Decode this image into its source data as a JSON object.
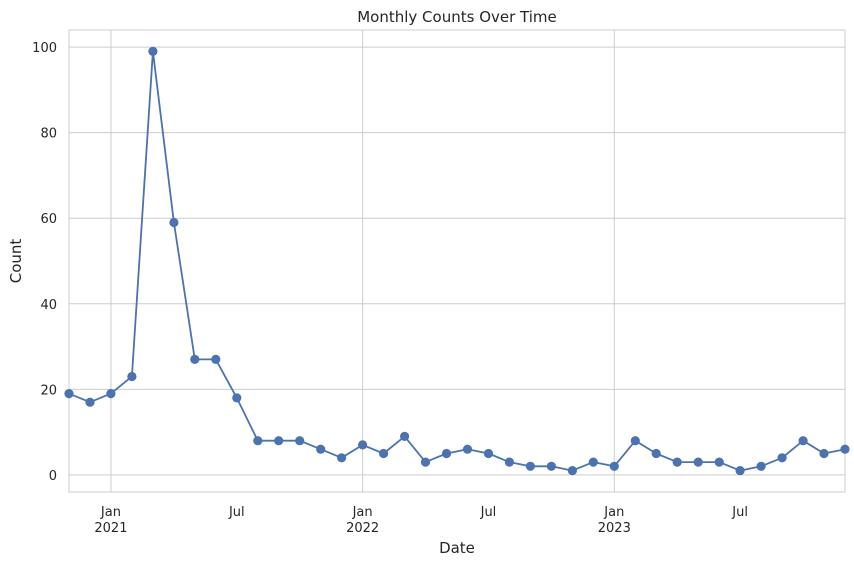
{
  "chart_data": {
    "type": "line",
    "title": "Monthly Counts Over Time",
    "xlabel": "Date",
    "ylabel": "Count",
    "ylim": [
      -4,
      104
    ],
    "xlim": [
      "2020-11",
      "2023-12"
    ],
    "grid": true,
    "line_color": "#4c72b0",
    "y_ticks": [
      0,
      20,
      40,
      60,
      80,
      100
    ],
    "x_ticks": [
      {
        "date": "2021-01",
        "label": "Jan",
        "year": "2021"
      },
      {
        "date": "2021-07",
        "label": "Jul",
        "year": ""
      },
      {
        "date": "2022-01",
        "label": "Jan",
        "year": "2022"
      },
      {
        "date": "2022-07",
        "label": "Jul",
        "year": ""
      },
      {
        "date": "2023-01",
        "label": "Jan",
        "year": "2023"
      },
      {
        "date": "2023-07",
        "label": "Jul",
        "year": ""
      }
    ],
    "series": [
      {
        "x": [
          "2020-11",
          "2020-12",
          "2021-01",
          "2021-02",
          "2021-03",
          "2021-04",
          "2021-05",
          "2021-06",
          "2021-07",
          "2021-08",
          "2021-09",
          "2021-10",
          "2021-11",
          "2021-12",
          "2022-01",
          "2022-02",
          "2022-03",
          "2022-04",
          "2022-05",
          "2022-06",
          "2022-07",
          "2022-08",
          "2022-09",
          "2022-10",
          "2022-11",
          "2022-12",
          "2023-01",
          "2023-02",
          "2023-03",
          "2023-04",
          "2023-05",
          "2023-06",
          "2023-07",
          "2023-08",
          "2023-09",
          "2023-10",
          "2023-11",
          "2023-12"
        ],
        "values": [
          19,
          17,
          19,
          23,
          99,
          59,
          27,
          27,
          18,
          8,
          8,
          8,
          6,
          4,
          7,
          5,
          9,
          3,
          5,
          6,
          5,
          3,
          2,
          2,
          1,
          3,
          2,
          8,
          5,
          3,
          3,
          3,
          1,
          2,
          4,
          8,
          5,
          6
        ]
      }
    ]
  }
}
